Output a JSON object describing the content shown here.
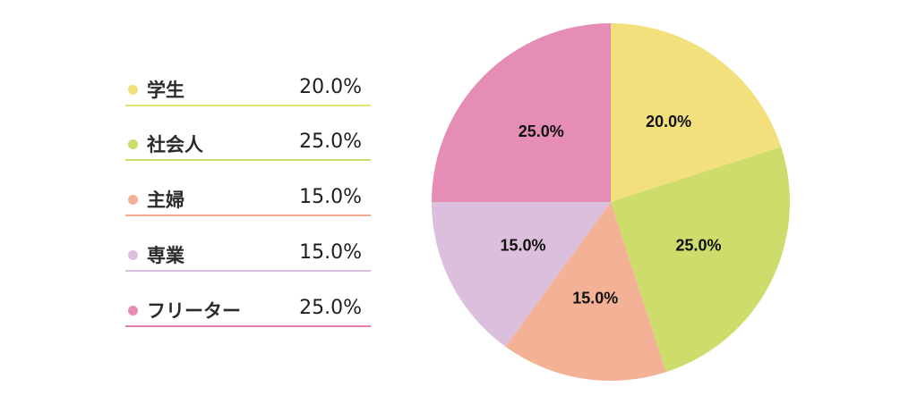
{
  "chart_data": {
    "type": "pie",
    "categories": [
      "学生",
      "社会人",
      "主婦",
      "専業",
      "フリーター"
    ],
    "values": [
      20.0,
      25.0,
      15.0,
      15.0,
      25.0
    ],
    "value_labels": [
      "20.0%",
      "25.0%",
      "15.0%",
      "15.0%",
      "25.0%"
    ],
    "colors": [
      "#f2e07d",
      "#cddc6a",
      "#f3b195",
      "#dbbfdc",
      "#e58db4"
    ],
    "legend_position": "left",
    "start_angle": "top",
    "direction": "clockwise"
  },
  "legend": {
    "items": [
      {
        "label": "学生",
        "value": "20.0%",
        "dot_color": "#f2e07d",
        "line_color": "#eae277"
      },
      {
        "label": "社会人",
        "value": "25.0%",
        "dot_color": "#cddc6a",
        "line_color": "#cddc6a"
      },
      {
        "label": "主婦",
        "value": "15.0%",
        "dot_color": "#f3b195",
        "line_color": "#efab8c"
      },
      {
        "label": "専業",
        "value": "15.0%",
        "dot_color": "#dbbfdc",
        "line_color": "#d8bede"
      },
      {
        "label": "フリーター",
        "value": "25.0%",
        "dot_color": "#e58db4",
        "line_color": "#e27fb0"
      }
    ]
  }
}
